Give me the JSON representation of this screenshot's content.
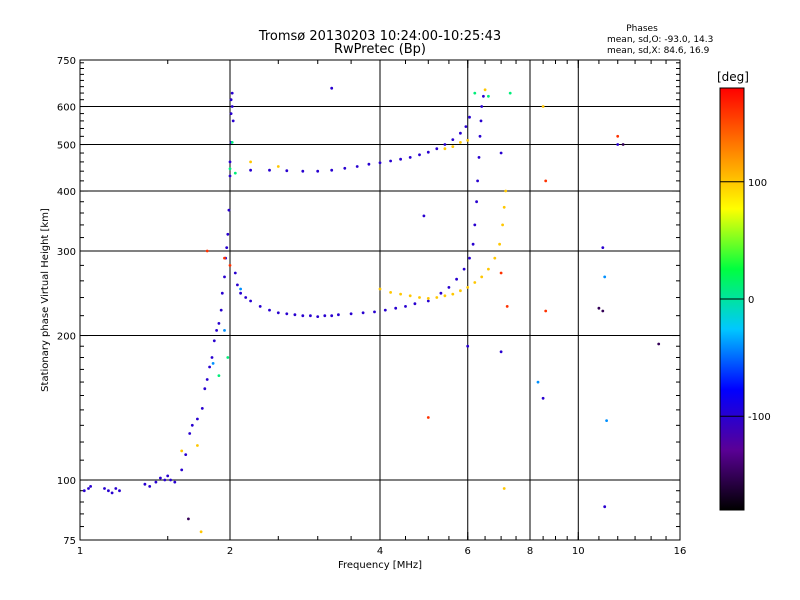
{
  "chart_data": {
    "type": "scatter",
    "title": "Tromsø 20130203 10:24:00-10:25:43",
    "subtitle": "RwPretec (Bp)",
    "xlabel": "Frequency [MHz]",
    "ylabel": "Stationary phase Virtual Height [km]",
    "x_scale": "log",
    "y_scale": "log",
    "xlim": [
      1,
      16
    ],
    "ylim": [
      75,
      750
    ],
    "x_ticks": [
      1,
      2,
      4,
      6,
      8,
      10,
      16
    ],
    "x_tick_labels": [
      "1",
      "2",
      "4",
      "6",
      "8",
      "10",
      "16"
    ],
    "x_gridlines": [
      2,
      4,
      6,
      8,
      10
    ],
    "y_ticks": [
      75,
      100,
      200,
      300,
      400,
      500,
      600,
      750
    ],
    "y_tick_labels": [
      "75",
      "100",
      "200",
      "300",
      "400",
      "500",
      "600",
      "750"
    ],
    "y_gridlines": [
      100,
      200,
      300,
      400,
      500,
      600
    ],
    "grid": true,
    "info_block": {
      "heading": "Phases",
      "line_o": "mean, sd,O: -93.0, 14.3",
      "line_x": "mean, sd,X:  84.6, 16.9"
    },
    "colorbar": {
      "unit": "[deg]",
      "range": [
        -180,
        180
      ],
      "ticks": [
        100,
        0,
        -100
      ],
      "tick_labels": [
        "100",
        "0",
        "-100"
      ],
      "colors": [
        "#000000",
        "#5a0096",
        "#0000ff",
        "#00c8ff",
        "#00ff40",
        "#ffff00",
        "#ff8000",
        "#ff0000"
      ]
    },
    "series": [
      {
        "phase": -100,
        "points": [
          [
            1.02,
            95
          ],
          [
            1.04,
            96
          ],
          [
            1.05,
            97
          ],
          [
            1.12,
            96
          ],
          [
            1.14,
            95
          ],
          [
            1.16,
            94
          ],
          [
            1.18,
            96
          ],
          [
            1.2,
            95
          ],
          [
            1.35,
            98
          ],
          [
            1.38,
            97
          ],
          [
            1.42,
            99
          ],
          [
            1.45,
            101
          ],
          [
            1.48,
            100
          ],
          [
            1.5,
            102
          ],
          [
            1.52,
            100
          ],
          [
            1.55,
            99
          ],
          [
            1.6,
            105
          ],
          [
            1.63,
            113
          ],
          [
            1.66,
            125
          ],
          [
            1.68,
            130
          ],
          [
            1.72,
            134
          ],
          [
            1.76,
            141
          ],
          [
            1.78,
            155
          ],
          [
            1.8,
            162
          ],
          [
            1.82,
            172
          ],
          [
            1.84,
            180
          ],
          [
            1.86,
            195
          ],
          [
            1.88,
            205
          ],
          [
            1.9,
            212
          ],
          [
            1.92,
            226
          ],
          [
            1.93,
            245
          ],
          [
            1.95,
            265
          ],
          [
            1.96,
            290
          ],
          [
            1.97,
            305
          ],
          [
            1.98,
            325
          ],
          [
            1.99,
            365
          ],
          [
            2.0,
            430
          ],
          [
            2.0,
            460
          ],
          [
            2.01,
            505
          ],
          [
            2.01,
            580
          ],
          [
            2.01,
            620
          ],
          [
            2.02,
            640
          ],
          [
            2.02,
            600
          ],
          [
            2.03,
            560
          ],
          [
            2.05,
            270
          ],
          [
            2.07,
            255
          ],
          [
            2.1,
            245
          ],
          [
            2.15,
            240
          ],
          [
            2.2,
            236
          ],
          [
            2.3,
            230
          ],
          [
            2.4,
            226
          ],
          [
            2.5,
            223
          ],
          [
            2.6,
            222
          ],
          [
            2.7,
            221
          ],
          [
            2.8,
            220
          ],
          [
            2.9,
            220
          ],
          [
            3.0,
            219
          ],
          [
            3.1,
            220
          ],
          [
            3.2,
            220
          ],
          [
            3.3,
            221
          ],
          [
            3.5,
            222
          ],
          [
            3.7,
            223
          ],
          [
            3.9,
            224
          ],
          [
            4.1,
            226
          ],
          [
            4.3,
            228
          ],
          [
            4.5,
            230
          ],
          [
            4.7,
            233
          ],
          [
            5.0,
            236
          ],
          [
            2.2,
            442
          ],
          [
            2.4,
            442
          ],
          [
            2.6,
            441
          ],
          [
            2.8,
            440
          ],
          [
            3.0,
            440
          ],
          [
            3.2,
            442
          ],
          [
            3.4,
            446
          ],
          [
            3.6,
            450
          ],
          [
            3.8,
            455
          ],
          [
            4.0,
            458
          ],
          [
            4.2,
            462
          ],
          [
            4.4,
            466
          ],
          [
            4.6,
            470
          ],
          [
            4.8,
            476
          ],
          [
            5.0,
            482
          ],
          [
            5.2,
            490
          ],
          [
            5.4,
            500
          ],
          [
            5.6,
            512
          ],
          [
            5.8,
            528
          ],
          [
            5.95,
            545
          ],
          [
            6.05,
            570
          ],
          [
            5.3,
            245
          ],
          [
            5.5,
            252
          ],
          [
            5.7,
            262
          ],
          [
            5.9,
            275
          ],
          [
            6.05,
            290
          ],
          [
            6.15,
            310
          ],
          [
            6.2,
            340
          ],
          [
            6.25,
            380
          ],
          [
            6.28,
            420
          ],
          [
            6.32,
            470
          ],
          [
            6.35,
            520
          ],
          [
            6.38,
            560
          ],
          [
            6.4,
            600
          ],
          [
            6.45,
            630
          ],
          [
            7.0,
            480
          ],
          [
            4.9,
            355
          ],
          [
            11.2,
            305
          ],
          [
            11.3,
            88
          ],
          [
            12.0,
            500
          ],
          [
            8.5,
            148
          ],
          [
            7.0,
            185
          ],
          [
            6.0,
            190
          ],
          [
            3.2,
            655
          ]
        ]
      },
      {
        "phase": 100,
        "points": [
          [
            4.0,
            250
          ],
          [
            4.2,
            246
          ],
          [
            4.4,
            244
          ],
          [
            4.6,
            242
          ],
          [
            4.8,
            240
          ],
          [
            5.0,
            239
          ],
          [
            5.2,
            240
          ],
          [
            5.4,
            242
          ],
          [
            5.6,
            244
          ],
          [
            5.8,
            248
          ],
          [
            6.0,
            252
          ],
          [
            6.2,
            258
          ],
          [
            6.4,
            265
          ],
          [
            6.6,
            275
          ],
          [
            6.8,
            290
          ],
          [
            6.95,
            310
          ],
          [
            7.05,
            340
          ],
          [
            7.1,
            370
          ],
          [
            7.15,
            400
          ],
          [
            5.4,
            490
          ],
          [
            5.6,
            495
          ],
          [
            5.8,
            505
          ],
          [
            6.0,
            510
          ],
          [
            6.5,
            650
          ],
          [
            1.6,
            115
          ],
          [
            1.72,
            118
          ],
          [
            2.2,
            460
          ],
          [
            2.5,
            450
          ],
          [
            7.1,
            96
          ],
          [
            8.5,
            600
          ],
          [
            1.75,
            78
          ]
        ]
      },
      {
        "phase": 160,
        "points": [
          [
            1.8,
            300
          ],
          [
            1.95,
            290
          ],
          [
            2.0,
            280
          ],
          [
            7.0,
            270
          ],
          [
            7.2,
            230
          ],
          [
            8.6,
            420
          ],
          [
            5.0,
            135
          ],
          [
            8.6,
            225
          ],
          [
            12.0,
            520
          ]
        ]
      },
      {
        "phase": 10,
        "points": [
          [
            1.9,
            165
          ],
          [
            1.98,
            180
          ],
          [
            2.0,
            445
          ],
          [
            2.05,
            436
          ],
          [
            2.02,
            505
          ],
          [
            6.2,
            640
          ],
          [
            6.6,
            630
          ],
          [
            7.3,
            640
          ]
        ]
      },
      {
        "phase": -40,
        "points": [
          [
            1.85,
            175
          ],
          [
            1.95,
            205
          ],
          [
            2.1,
            250
          ],
          [
            11.3,
            265
          ],
          [
            11.4,
            133
          ],
          [
            8.3,
            160
          ]
        ]
      },
      {
        "phase": -150,
        "points": [
          [
            14.5,
            192
          ],
          [
            11.0,
            228
          ],
          [
            11.2,
            225
          ],
          [
            1.65,
            83
          ],
          [
            12.3,
            500
          ]
        ]
      }
    ]
  }
}
